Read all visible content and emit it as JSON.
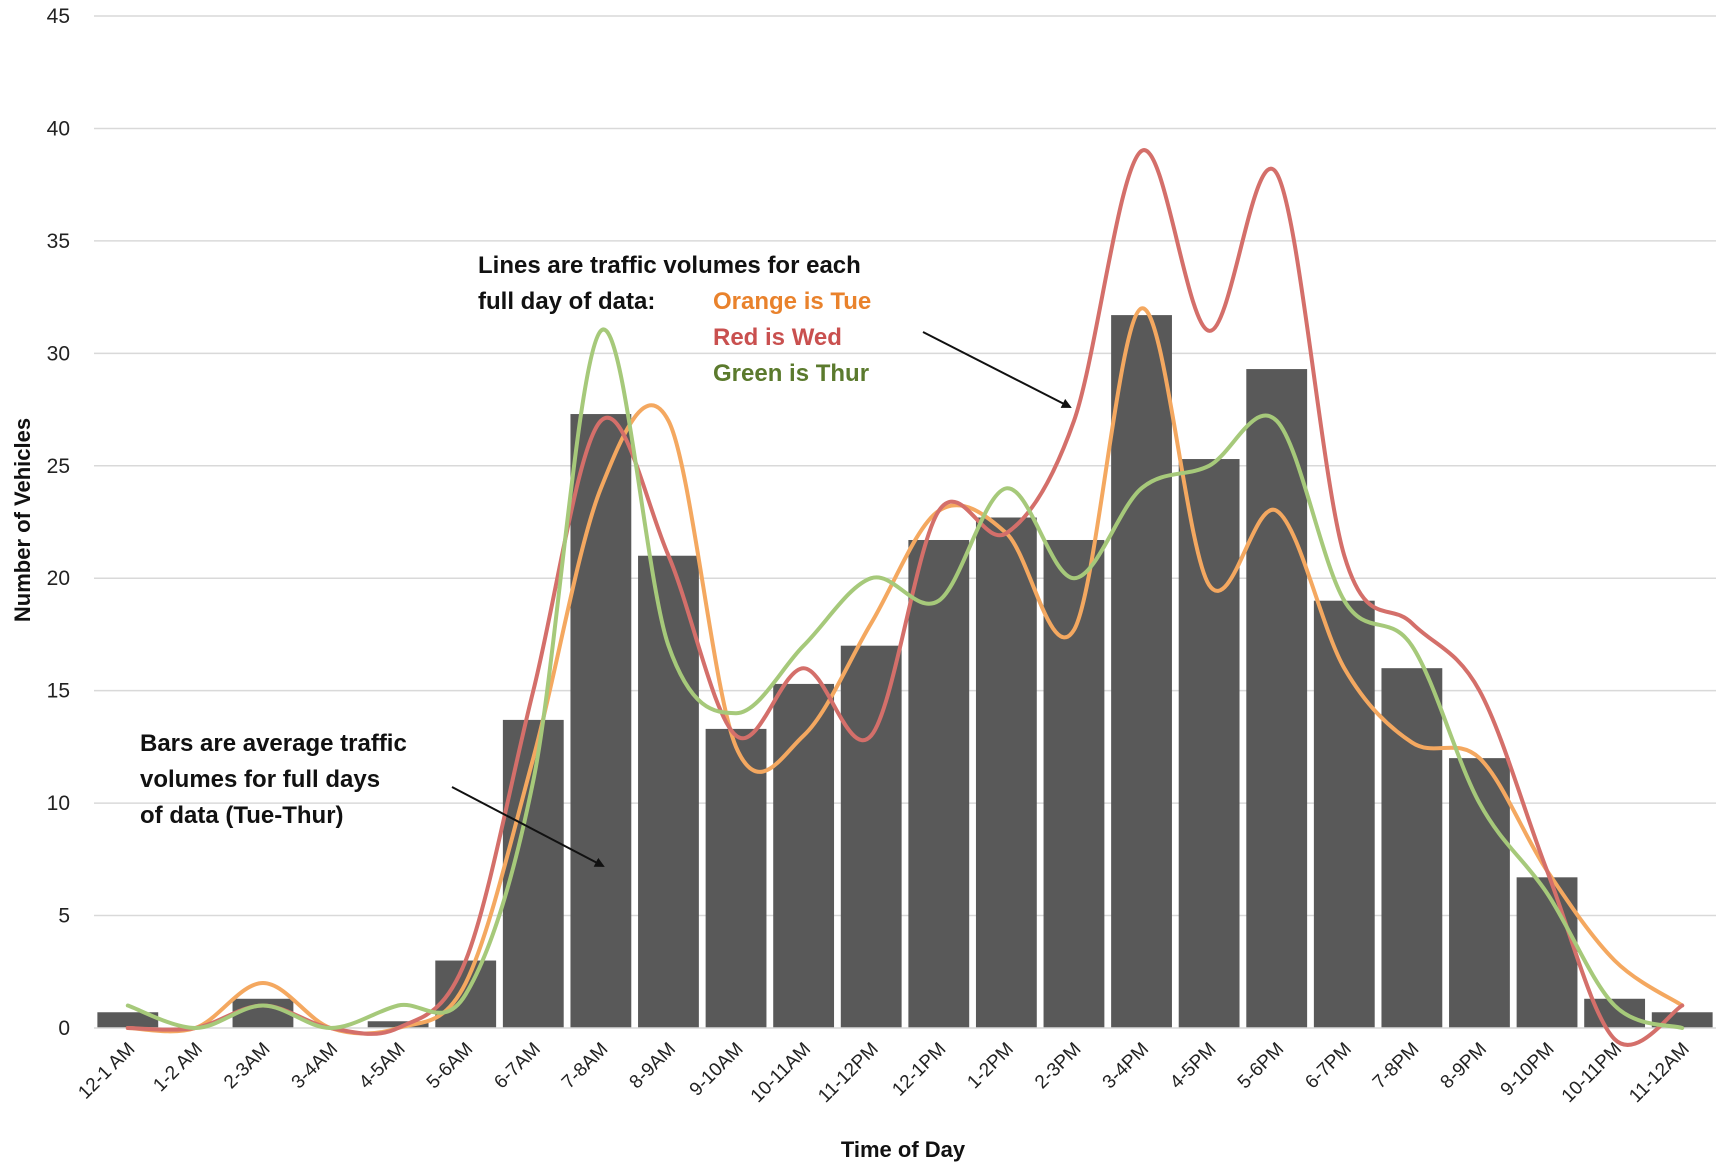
{
  "colors": {
    "bars": "#595959",
    "grid": "#d9d9d9",
    "tue": "#f4a860",
    "wed": "#d46f6a",
    "thur": "#a6c97a",
    "arrow": "#111111"
  },
  "annotations": {
    "lines_note_1": "Lines are traffic volumes for each",
    "lines_note_2": "full day of data:",
    "orange_label": "Orange is Tue",
    "red_label": "Red is Wed",
    "green_label": "Green is Thur",
    "bars_note_1": "Bars are average traffic",
    "bars_note_2": "volumes for full days",
    "bars_note_3": "of data (Tue-Thur)"
  },
  "chart_data": {
    "type": "bar",
    "title": "",
    "xlabel": "Time of Day",
    "ylabel": "Number of Vehicles",
    "ylim": [
      0,
      45
    ],
    "yticks": [
      0,
      5,
      10,
      15,
      20,
      25,
      30,
      35,
      40,
      45
    ],
    "grid": true,
    "categories": [
      "12-1 AM",
      "1-2 AM",
      "2-3AM",
      "3-4AM",
      "4-5AM",
      "5-6AM",
      "6-7AM",
      "7-8AM",
      "8-9AM",
      "9-10AM",
      "10-11AM",
      "11-12PM",
      "12-1PM",
      "1-2PM",
      "2-3PM",
      "3-4PM",
      "4-5PM",
      "5-6PM",
      "6-7PM",
      "7-8PM",
      "8-9PM",
      "9-10PM",
      "10-11PM",
      "11-12AM"
    ],
    "values": [
      0.7,
      0,
      1.3,
      0,
      0.3,
      3,
      13.7,
      27.3,
      21,
      13.3,
      15.3,
      17,
      21.7,
      22.7,
      21.7,
      31.7,
      25.3,
      29.3,
      19,
      16,
      12,
      6.7,
      1.3,
      0.7
    ],
    "series": [
      {
        "key": "tue",
        "type": "line",
        "values": [
          0,
          0,
          2,
          0,
          0,
          2,
          12,
          24,
          27,
          12.5,
          13,
          18,
          23,
          22,
          17.7,
          32,
          19.7,
          23,
          16,
          12.7,
          12,
          7,
          3,
          1
        ]
      },
      {
        "key": "wed",
        "type": "line",
        "values": [
          0,
          0,
          1,
          0,
          0,
          3,
          15,
          27,
          21,
          13,
          16,
          13,
          23,
          22,
          27,
          39,
          31,
          38,
          21,
          18,
          15,
          7,
          -0.5,
          1
        ]
      },
      {
        "key": "thur",
        "type": "line",
        "values": [
          1,
          0,
          1,
          0,
          1,
          1.5,
          11,
          31,
          17,
          14,
          17,
          20,
          19,
          24,
          20,
          24,
          25,
          27,
          19,
          17,
          10,
          6,
          1,
          0
        ]
      }
    ]
  }
}
